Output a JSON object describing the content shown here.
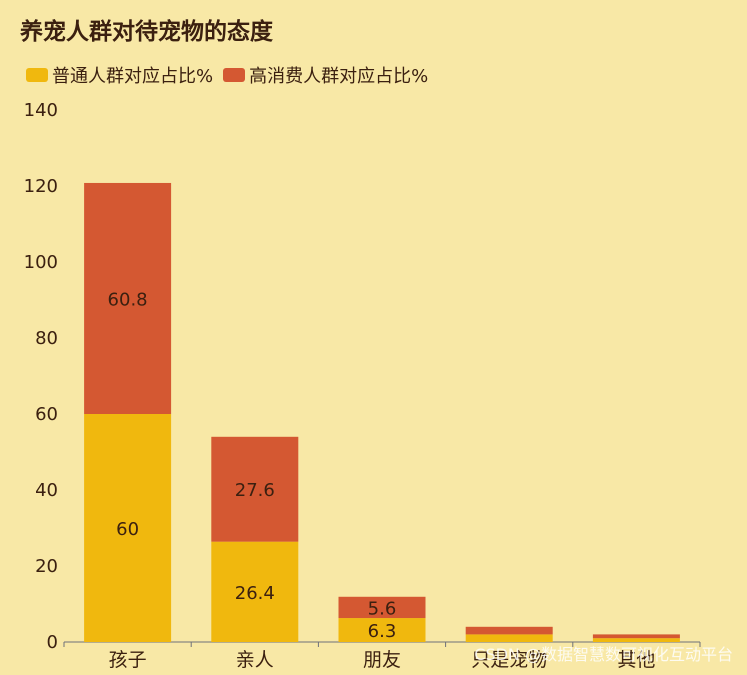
{
  "chart_data": {
    "type": "bar",
    "stacked": true,
    "title": "养宠人群对待宠物的态度",
    "categories": [
      "孩子",
      "亲人",
      "朋友",
      "只是宠物",
      "其他"
    ],
    "series": [
      {
        "name": "普通人群对应占比%",
        "color": "#f0b80e",
        "values": [
          60,
          26.4,
          6.3,
          2,
          1
        ]
      },
      {
        "name": "高消费人群对应占比%",
        "color": "#d45832",
        "values": [
          60.8,
          27.6,
          5.6,
          2,
          1
        ]
      }
    ],
    "data_labels": [
      [
        "60",
        "26.4",
        "6.3",
        "",
        ""
      ],
      [
        "60.8",
        "27.6",
        "5.6",
        "",
        ""
      ]
    ],
    "ylim": [
      0,
      140
    ],
    "yticks": [
      0,
      20,
      40,
      60,
      80,
      100,
      120,
      140
    ],
    "grid": false,
    "legend": "top-left"
  },
  "watermark": "CSDN @数据智慧数可视化互动平台"
}
